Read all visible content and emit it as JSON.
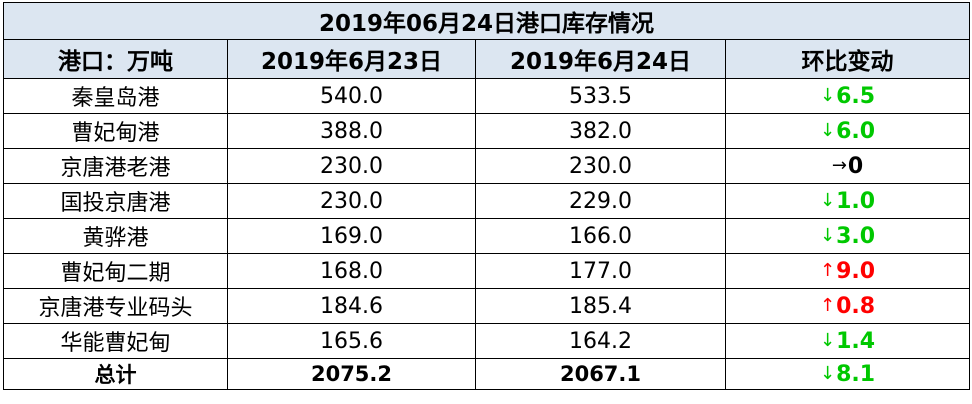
{
  "title": "2019年06月24日港口库存情况",
  "headers": [
    "港口：万吨",
    "2019年6月23日",
    "2019年6月24日",
    "环比变动"
  ],
  "rows": [
    {
      "port": "秦皇岛港",
      "d23": "540.0",
      "d24": "533.5",
      "arrow": "↓",
      "change": "6.5",
      "direction": "down"
    },
    {
      "port": "曹妃甸港",
      "d23": "388.0",
      "d24": "382.0",
      "arrow": "↓",
      "change": "6.0",
      "direction": "down"
    },
    {
      "port": "京唐港老港",
      "d23": "230.0",
      "d24": "230.0",
      "arrow": "→",
      "change": "0",
      "direction": "flat"
    },
    {
      "port": "国投京唐港",
      "d23": "230.0",
      "d24": "229.0",
      "arrow": "↓",
      "change": "1.0",
      "direction": "down"
    },
    {
      "port": "黄骅港",
      "d23": "169.0",
      "d24": "166.0",
      "arrow": "↓",
      "change": "3.0",
      "direction": "down"
    },
    {
      "port": "曹妃甸二期",
      "d23": "168.0",
      "d24": "177.0",
      "arrow": "↑",
      "change": "9.0",
      "direction": "up"
    },
    {
      "port": "京唐港专业码头",
      "d23": "184.6",
      "d24": "185.4",
      "arrow": "↑",
      "change": "0.8",
      "direction": "up"
    },
    {
      "port": "华能曹妃甸",
      "d23": "165.6",
      "d24": "164.2",
      "arrow": "↓",
      "change": "1.4",
      "direction": "down"
    }
  ],
  "total": {
    "label": "总计",
    "d23": "2075.2",
    "d24": "2067.1",
    "arrow": "↓",
    "change": "8.1",
    "direction": "down"
  },
  "colors": {
    "header_bg": "#dce6f1",
    "down": "#00c800",
    "up": "#ff0000",
    "flat": "#000000"
  }
}
